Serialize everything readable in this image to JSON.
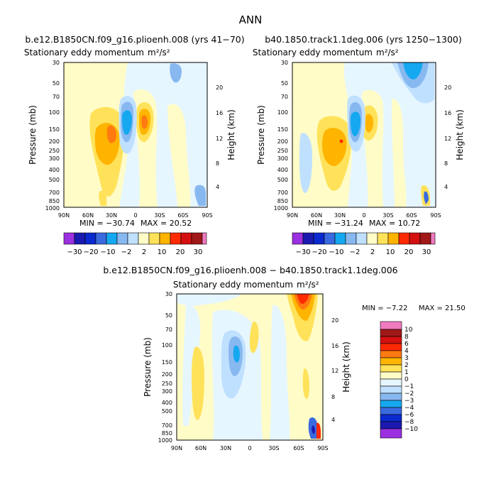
{
  "page_title": "ANN",
  "palette": {
    "neg10": "#9b30e0",
    "neg8": "#1a1ab0",
    "neg6": "#0a2ad0",
    "neg4": "#3a6adf",
    "neg3": "#15a8f0",
    "neg2": "#88b8f0",
    "neg1": "#c0e0ff",
    "zero": "#e6f6ff",
    "pos1": "#fffcc8",
    "pos2": "#ffe25a",
    "pos3": "#ffb400",
    "pos4": "#ff7a10",
    "pos6": "#ff2a00",
    "pos8": "#d41010",
    "pos10": "#a01818",
    "top": "#f07ac0"
  },
  "chart_data": [
    {
      "type": "contour",
      "title": "b.e12.B1850CN.f09_g16.plioenh.008 (yrs 41−70)",
      "subtitle": "Stationary eddy momentum",
      "units": "m²/s²",
      "xlabel": "",
      "ylabel": "Pressure (mb)",
      "y2label": "Height (km)",
      "x_ticks": [
        "90N",
        "60N",
        "30N",
        "0",
        "30S",
        "60S",
        "90S"
      ],
      "x_range": [
        90,
        -90
      ],
      "pressure_ticks": [
        "30",
        "50",
        "70",
        "100",
        "150",
        "200",
        "250",
        "300",
        "400",
        "500",
        "700",
        "850",
        "1000"
      ],
      "height_ticks": [
        "20",
        "16",
        "12",
        "8",
        "4"
      ],
      "min_label": "MIN = −30.74",
      "max_label": "MAX = 20.52",
      "min": -30.74,
      "max": 20.52,
      "contour_levels": [
        -30,
        -20,
        -10,
        -5,
        -2,
        -1,
        1,
        2,
        5,
        10,
        20,
        30
      ],
      "colorbar_labels": [
        "−30",
        "−20",
        "−10",
        "−2",
        "2",
        "10",
        "20",
        "30"
      ],
      "features": [
        {
          "name": "positive-lobe-30N",
          "lat": 25,
          "pressure": 250,
          "value": 12
        },
        {
          "name": "negative-core-10N",
          "lat": 12,
          "pressure": 150,
          "value": -30.74
        },
        {
          "name": "positive-core-10S",
          "lat": -10,
          "pressure": 150,
          "value": 20.52
        },
        {
          "name": "negative-upper-15N",
          "lat": 15,
          "pressure": 40,
          "value": -3
        }
      ]
    },
    {
      "type": "contour",
      "title": "b40.1850.track1.1deg.006 (yrs 1250−1300)",
      "subtitle": "Stationary eddy momentum",
      "units": "m²/s²",
      "xlabel": "",
      "ylabel": "Pressure (mb)",
      "y2label": "Height (km)",
      "x_ticks": [
        "90N",
        "60N",
        "30N",
        "0",
        "30S",
        "60S",
        "90S"
      ],
      "x_range": [
        90,
        -90
      ],
      "pressure_ticks": [
        "30",
        "50",
        "70",
        "100",
        "150",
        "200",
        "250",
        "300",
        "400",
        "500",
        "700",
        "850",
        "1000"
      ],
      "height_ticks": [
        "20",
        "16",
        "12",
        "8",
        "4"
      ],
      "min_label": "MIN = −31.24",
      "max_label": "MAX = 10.72",
      "min": -31.24,
      "max": 10.72,
      "contour_levels": [
        -30,
        -20,
        -10,
        -5,
        -2,
        -1,
        1,
        2,
        5,
        10,
        20,
        30
      ],
      "colorbar_labels": [
        "−30",
        "−20",
        "−10",
        "−2",
        "2",
        "10",
        "20",
        "30"
      ],
      "features": [
        {
          "name": "positive-lobe-30N",
          "lat": 25,
          "pressure": 250,
          "value": 10.72
        },
        {
          "name": "negative-core-10N",
          "lat": 12,
          "pressure": 150,
          "value": -31.24
        },
        {
          "name": "positive-core-10S",
          "lat": -10,
          "pressure": 150,
          "value": 8
        },
        {
          "name": "negative-upper-50S",
          "lat": -50,
          "pressure": 40,
          "value": -5
        }
      ]
    },
    {
      "type": "contour",
      "title": "b.e12.B1850CN.f09_g16.plioenh.008 − b40.1850.track1.1deg.006",
      "subtitle": "Stationary eddy momentum",
      "units": "m²/s²",
      "xlabel": "",
      "ylabel": "Pressure (mb)",
      "y2label": "Height (km)",
      "x_ticks": [
        "90N",
        "60N",
        "30N",
        "0",
        "30S",
        "60S",
        "90S"
      ],
      "x_range": [
        90,
        -90
      ],
      "pressure_ticks": [
        "30",
        "50",
        "70",
        "100",
        "150",
        "200",
        "250",
        "300",
        "400",
        "500",
        "700",
        "850",
        "1000"
      ],
      "height_ticks": [
        "20",
        "16",
        "12",
        "8",
        "4"
      ],
      "min_label": "MIN =  −7.22",
      "max_label": "MAX =  21.50",
      "min": -7.22,
      "max": 21.5,
      "contour_levels": [
        -10,
        -8,
        -6,
        -4,
        -3,
        -2,
        -1,
        0,
        1,
        2,
        3,
        4,
        6,
        8,
        10
      ],
      "colorbar_labels": [
        "10",
        "8",
        "6",
        "4",
        "3",
        "2",
        "1",
        "0",
        "−1",
        "−2",
        "−3",
        "−4",
        "−6",
        "−8",
        "−10"
      ],
      "features": [
        {
          "name": "positive-upper-65S",
          "lat": -65,
          "pressure": 35,
          "value": 21.5
        },
        {
          "name": "negative-column-10N",
          "lat": 10,
          "pressure": 150,
          "value": -3
        },
        {
          "name": "positive-column-60N",
          "lat": 60,
          "pressure": 250,
          "value": 2
        },
        {
          "name": "negative-surface-85S",
          "lat": -85,
          "pressure": 900,
          "value": -7.22
        }
      ]
    }
  ]
}
